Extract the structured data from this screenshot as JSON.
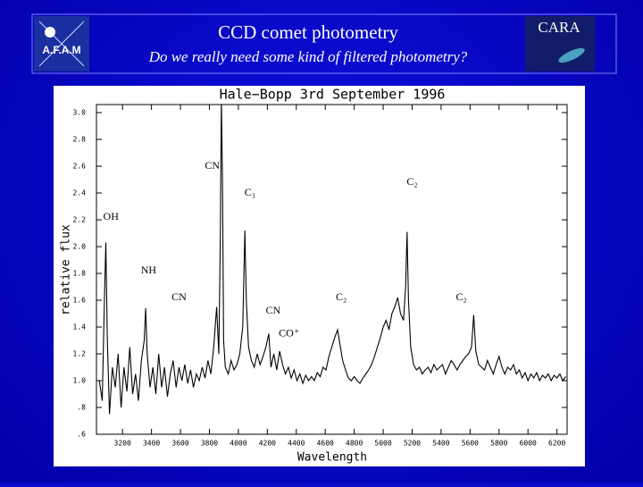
{
  "header": {
    "title": "CCD comet photometry",
    "subtitle": "Do we really need some kind of filtered photometry?",
    "left_logo": "A.F.A.M",
    "right_logo": "CARA"
  },
  "chart_data": {
    "type": "line",
    "title": "Hale−Bopp 3rd September 1996",
    "x_label": "Wavelength",
    "y_label": "relative flux",
    "color": "#000000",
    "x": [
      3040,
      3060,
      3075,
      3085,
      3095,
      3110,
      3130,
      3150,
      3170,
      3190,
      3210,
      3230,
      3250,
      3270,
      3290,
      3310,
      3330,
      3350,
      3360,
      3370,
      3390,
      3410,
      3430,
      3450,
      3470,
      3490,
      3510,
      3530,
      3550,
      3570,
      3590,
      3610,
      3630,
      3650,
      3670,
      3690,
      3710,
      3730,
      3750,
      3770,
      3790,
      3810,
      3830,
      3850,
      3865,
      3875,
      3883,
      3890,
      3898,
      3910,
      3930,
      3950,
      3970,
      3990,
      4010,
      4030,
      4045,
      4055,
      4070,
      4090,
      4110,
      4130,
      4150,
      4170,
      4190,
      4210,
      4225,
      4245,
      4265,
      4285,
      4305,
      4325,
      4345,
      4365,
      4385,
      4405,
      4425,
      4445,
      4465,
      4485,
      4505,
      4525,
      4545,
      4565,
      4585,
      4605,
      4625,
      4645,
      4665,
      4685,
      4700,
      4720,
      4740,
      4760,
      4780,
      4800,
      4820,
      4840,
      4860,
      4880,
      4900,
      4920,
      4940,
      4960,
      4980,
      5000,
      5020,
      5040,
      5060,
      5080,
      5100,
      5120,
      5140,
      5155,
      5165,
      5175,
      5190,
      5210,
      5230,
      5250,
      5270,
      5290,
      5310,
      5330,
      5350,
      5370,
      5390,
      5410,
      5430,
      5450,
      5470,
      5490,
      5510,
      5530,
      5550,
      5570,
      5590,
      5610,
      5625,
      5640,
      5660,
      5680,
      5700,
      5720,
      5740,
      5760,
      5780,
      5800,
      5820,
      5840,
      5860,
      5880,
      5900,
      5920,
      5940,
      5960,
      5980,
      6000,
      6020,
      6040,
      6060,
      6080,
      6100,
      6120,
      6140,
      6160,
      6180,
      6200,
      6220,
      6240,
      6260
    ],
    "values": [
      1.0,
      0.85,
      1.6,
      2.03,
      1.3,
      0.75,
      1.1,
      0.95,
      1.2,
      0.8,
      1.1,
      0.92,
      1.25,
      0.9,
      1.05,
      0.85,
      1.15,
      1.3,
      1.54,
      1.2,
      0.95,
      1.1,
      0.9,
      1.2,
      0.95,
      1.1,
      0.88,
      1.05,
      1.15,
      0.95,
      1.1,
      1.0,
      1.12,
      0.98,
      1.08,
      0.95,
      1.05,
      1.0,
      1.1,
      1.02,
      1.15,
      1.05,
      1.25,
      1.55,
      1.2,
      2.0,
      3.1,
      2.5,
      1.3,
      1.1,
      1.05,
      1.15,
      1.08,
      1.12,
      1.2,
      1.4,
      2.12,
      1.6,
      1.25,
      1.15,
      1.1,
      1.2,
      1.12,
      1.18,
      1.25,
      1.35,
      1.1,
      1.2,
      1.08,
      1.22,
      1.12,
      1.05,
      1.1,
      1.02,
      1.08,
      1.0,
      1.05,
      0.98,
      1.04,
      1.0,
      1.03,
      1.0,
      1.06,
      1.03,
      1.1,
      1.08,
      1.18,
      1.25,
      1.32,
      1.38,
      1.28,
      1.15,
      1.08,
      1.02,
      1.0,
      1.03,
      1.0,
      0.98,
      1.02,
      1.05,
      1.08,
      1.12,
      1.18,
      1.25,
      1.32,
      1.4,
      1.45,
      1.38,
      1.5,
      1.55,
      1.62,
      1.5,
      1.45,
      1.7,
      2.11,
      1.6,
      1.25,
      1.12,
      1.08,
      1.1,
      1.05,
      1.08,
      1.1,
      1.06,
      1.12,
      1.08,
      1.1,
      1.12,
      1.05,
      1.1,
      1.15,
      1.12,
      1.08,
      1.12,
      1.15,
      1.18,
      1.2,
      1.25,
      1.49,
      1.22,
      1.12,
      1.1,
      1.08,
      1.15,
      1.1,
      1.05,
      1.12,
      1.18,
      1.1,
      1.05,
      1.1,
      1.08,
      1.12,
      1.05,
      1.08,
      1.02,
      1.06,
      1.0,
      1.05,
      1.02,
      1.06,
      1.0,
      1.04,
      1.02,
      1.05,
      1.0,
      1.04,
      1.02,
      1.05,
      1.0,
      1.03
    ],
    "xlim": [
      3020,
      6270
    ],
    "ylim": [
      0.6,
      3.06
    ],
    "xticks": [
      3200,
      3400,
      3600,
      3800,
      4000,
      4200,
      4400,
      4600,
      4800,
      5000,
      5200,
      5400,
      5600,
      5800,
      6000,
      6200
    ],
    "yticks": [
      {
        "value": 0.6,
        "label": ".6"
      },
      {
        "value": 0.8,
        "label": ".8"
      },
      {
        "value": 1,
        "label": "1.0"
      },
      1.2,
      1.4,
      1.6,
      1.8,
      {
        "value": 2,
        "label": "2.0"
      },
      2.2,
      2.4,
      2.6,
      2.8,
      {
        "value": 3,
        "label": "3.0"
      }
    ],
    "annotations": [
      {
        "text": "OH",
        "x": 3120,
        "y": 2.22
      },
      {
        "text": "NH",
        "x": 3380,
        "y": 1.82
      },
      {
        "text": "CN",
        "x": 3590,
        "y": 1.62
      },
      {
        "text": "CN",
        "x": 3820,
        "y": 2.6
      },
      {
        "text": "C₃",
        "x": 4080,
        "y": 2.4
      },
      {
        "text": "CN",
        "x": 4240,
        "y": 1.52
      },
      {
        "text": "CO⁺",
        "x": 4350,
        "y": 1.35
      },
      {
        "text": "C₂",
        "x": 4710,
        "y": 1.62
      },
      {
        "text": "C₂",
        "x": 5200,
        "y": 2.48
      },
      {
        "text": "C₂",
        "x": 5540,
        "y": 1.62
      }
    ]
  }
}
